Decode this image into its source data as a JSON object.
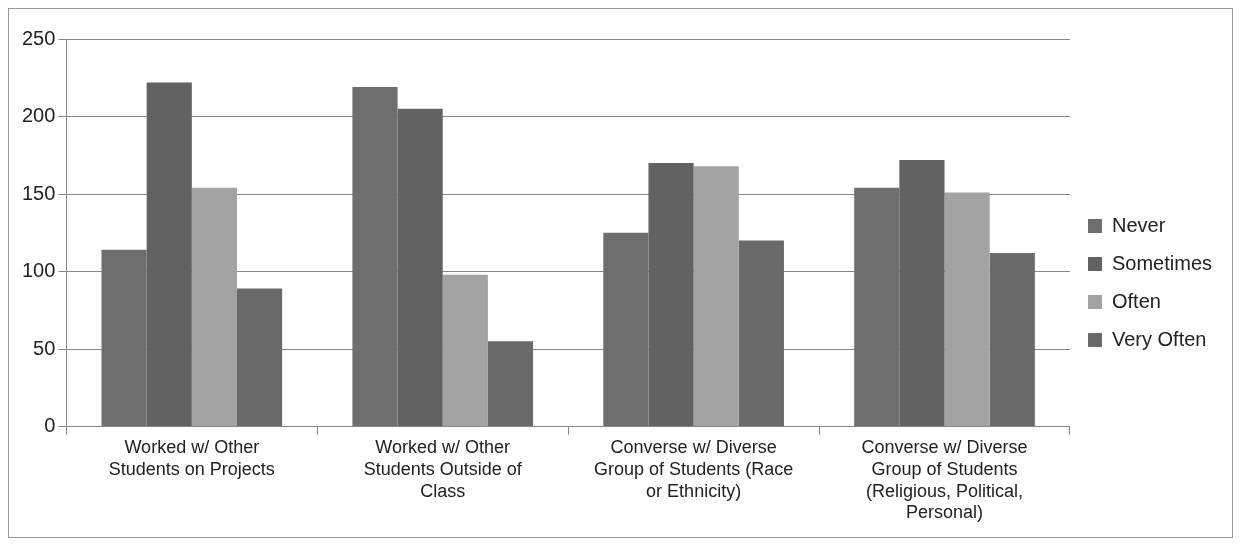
{
  "chart_data": {
    "type": "bar",
    "categories": [
      "Worked w/ Other Students on Projects",
      "Worked w/ Other Students Outside of Class",
      "Converse w/ Diverse Group of Students (Race or Ethnicity)",
      "Converse w/ Diverse Group of Students (Religious, Political, Personal)"
    ],
    "series": [
      {
        "name": "Never",
        "color": "#6e6e6e",
        "values": [
          114,
          219,
          125,
          154
        ]
      },
      {
        "name": "Sometimes",
        "color": "#626262",
        "values": [
          222,
          205,
          170,
          172
        ]
      },
      {
        "name": "Often",
        "color": "#a3a3a3",
        "values": [
          154,
          98,
          168,
          151
        ]
      },
      {
        "name": "Very Often",
        "color": "#6a6a6a",
        "values": [
          89,
          55,
          120,
          112
        ]
      }
    ],
    "ylim": [
      0,
      250
    ],
    "yticks": [
      0,
      50,
      100,
      150,
      200,
      250
    ],
    "grid": "y",
    "legend": "right"
  }
}
